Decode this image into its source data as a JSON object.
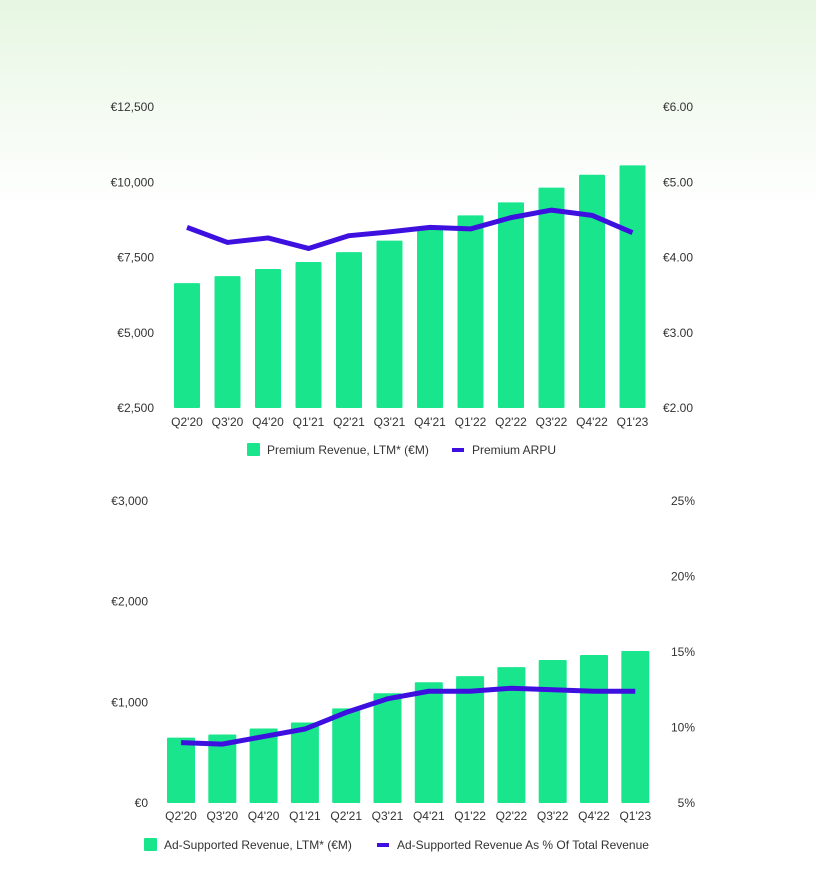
{
  "colors": {
    "bar": "#19e68c",
    "line": "#3d10e0",
    "text": "#333333"
  },
  "chart_data": [
    {
      "type": "bar",
      "categories": [
        "Q2'20",
        "Q3'20",
        "Q4'20",
        "Q1'21",
        "Q2'21",
        "Q3'21",
        "Q4'21",
        "Q1'22",
        "Q2'22",
        "Q3'22",
        "Q4'22",
        "Q1'23"
      ],
      "series": [
        {
          "name": "Premium Revenue, LTM* (€M)",
          "type": "bar",
          "axis": "left",
          "values": [
            6650,
            6880,
            7120,
            7350,
            7680,
            8060,
            8520,
            8900,
            9330,
            9820,
            10250,
            10560
          ]
        },
        {
          "name": "Premium ARPU",
          "type": "line",
          "axis": "right",
          "values": [
            4.4,
            4.2,
            4.26,
            4.12,
            4.29,
            4.34,
            4.4,
            4.38,
            4.53,
            4.63,
            4.56,
            4.33
          ]
        }
      ],
      "left_axis": {
        "ticks": [
          "€2,500",
          "€5,000",
          "€7,500",
          "€10,000",
          "€12,500"
        ],
        "range": [
          2500,
          12500
        ]
      },
      "right_axis": {
        "ticks": [
          "€2.00",
          "€3.00",
          "€4.00",
          "€5.00",
          "€6.00"
        ],
        "range": [
          2.0,
          6.0
        ]
      },
      "legend": [
        "Premium Revenue, LTM* (€M)",
        "Premium ARPU"
      ]
    },
    {
      "type": "bar",
      "categories": [
        "Q2'20",
        "Q3'20",
        "Q4'20",
        "Q1'21",
        "Q2'21",
        "Q3'21",
        "Q4'21",
        "Q1'22",
        "Q2'22",
        "Q3'22",
        "Q4'22",
        "Q1'23"
      ],
      "series": [
        {
          "name": "Ad-Supported Revenue, LTM* (€M)",
          "type": "bar",
          "axis": "left",
          "values": [
            650,
            680,
            740,
            800,
            940,
            1090,
            1200,
            1260,
            1350,
            1420,
            1470,
            1510
          ]
        },
        {
          "name": "Ad-Supported Revenue As % Of Total Revenue",
          "type": "line",
          "axis": "right",
          "values": [
            9.0,
            8.9,
            9.4,
            9.9,
            11.0,
            11.9,
            12.4,
            12.4,
            12.6,
            12.5,
            12.4,
            12.4
          ]
        }
      ],
      "left_axis": {
        "ticks": [
          "€0",
          "€1,000",
          "€2,000",
          "€3,000"
        ],
        "range": [
          0,
          3000
        ]
      },
      "right_axis": {
        "ticks": [
          "5%",
          "10%",
          "15%",
          "20%",
          "25%"
        ],
        "range": [
          5,
          25
        ]
      },
      "legend": [
        "Ad-Supported Revenue, LTM* (€M)",
        "Ad-Supported Revenue As % Of Total Revenue"
      ]
    }
  ]
}
